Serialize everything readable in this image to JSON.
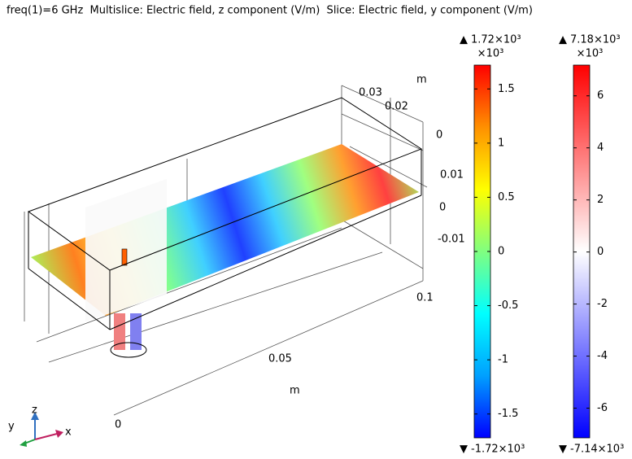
{
  "title": "freq(1)=6 GHz  Multislice: Electric field, z component (V/m)  Slice: Electric field, y component (V/m)",
  "colorbars": [
    {
      "max_label": "1.72×10³",
      "multiplier": "×10³",
      "min_label": "-1.72×10³",
      "range": [
        -1.72,
        1.72
      ],
      "ticks": [
        1.5,
        1,
        0.5,
        0,
        -0.5,
        -1,
        -1.5
      ],
      "colors": [
        "#0000ff",
        "#00a0ff",
        "#00ffff",
        "#80ff80",
        "#ffff00",
        "#ff9000",
        "#ff0000"
      ]
    },
    {
      "max_label": "7.18×10³",
      "multiplier": "×10³",
      "min_label": "-7.14×10³",
      "range": [
        -7.14,
        7.18
      ],
      "ticks": [
        6,
        4,
        2,
        0,
        -2,
        -4,
        -6
      ],
      "colors": [
        "#0000ff",
        "#ffffff",
        "#ff0000"
      ]
    }
  ],
  "axis_labels": [
    "m",
    "0.03",
    "0.02",
    "0",
    "0.01",
    "0",
    "-0.01",
    "0.1",
    "0.05",
    "m",
    "0"
  ],
  "triad": [
    "z",
    "y",
    "x"
  ]
}
